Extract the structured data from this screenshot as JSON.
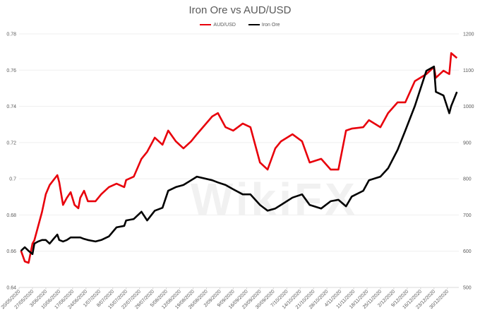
{
  "chart_data": {
    "type": "line",
    "title": "Iron Ore vs AUD/USD",
    "xlabel": "",
    "ylabel_left": "",
    "ylabel_right": "",
    "x_unit": "days since 20/05/2020",
    "xlim": [
      0,
      230
    ],
    "ylim_left": [
      0.64,
      0.78
    ],
    "ylim_right": [
      500,
      1200
    ],
    "yticks_left": [
      "0.64",
      "0.66",
      "0.68",
      "0.7",
      "0.72",
      "0.74",
      "0.76",
      "0.78"
    ],
    "yticks_right": [
      "500",
      "600",
      "700",
      "800",
      "900",
      "1000",
      "1100",
      "1200"
    ],
    "xtick_labels": [
      "20/05/2020",
      "27/05/2020",
      "3/06/2020",
      "10/06/2020",
      "17/06/2020",
      "24/06/2020",
      "1/07/2020",
      "8/07/2020",
      "15/07/2020",
      "22/07/2020",
      "29/07/2020",
      "5/08/2020",
      "12/08/2020",
      "19/08/2020",
      "26/08/2020",
      "2/09/2020",
      "9/09/2020",
      "16/09/2020",
      "23/09/2020",
      "30/09/2020",
      "7/10/2020",
      "14/10/2020",
      "21/10/2020",
      "28/10/2020",
      "4/11/2020",
      "11/11/2020",
      "18/11/2020",
      "25/11/2020",
      "2/12/2020",
      "9/12/2020",
      "16/12/2020",
      "23/12/2020",
      "30/12/2020"
    ],
    "grid": true,
    "legend_position": "top-center",
    "series": [
      {
        "name": "AUD/USD",
        "axis": "left",
        "color": "#e8000b",
        "x": [
          1,
          3,
          5,
          7,
          8,
          10,
          12,
          14,
          16,
          18,
          20,
          21,
          23,
          25,
          27,
          29,
          31,
          32,
          34,
          36,
          40,
          43,
          47,
          51,
          55,
          56,
          60,
          64,
          67,
          71,
          75,
          78,
          82,
          86,
          90,
          93,
          101,
          104,
          108,
          112,
          117,
          121,
          126,
          130,
          134,
          137,
          143,
          148,
          152,
          158,
          163,
          167,
          171,
          174,
          180,
          183,
          189,
          193,
          198,
          202,
          207,
          213,
          217,
          218,
          222,
          225,
          226,
          229
        ],
        "y": [
          0.6603,
          0.6544,
          0.6536,
          0.6642,
          0.6661,
          0.6739,
          0.6817,
          0.6915,
          0.6965,
          0.6993,
          0.702,
          0.6981,
          0.6856,
          0.6895,
          0.6926,
          0.6856,
          0.6837,
          0.6895,
          0.6934,
          0.6876,
          0.6876,
          0.6915,
          0.6954,
          0.6973,
          0.6954,
          0.6993,
          0.7012,
          0.711,
          0.7149,
          0.7227,
          0.7188,
          0.7266,
          0.7207,
          0.7168,
          0.7207,
          0.7246,
          0.7344,
          0.7363,
          0.7285,
          0.7266,
          0.7305,
          0.7285,
          0.709,
          0.7051,
          0.7168,
          0.7207,
          0.7246,
          0.7207,
          0.709,
          0.711,
          0.7051,
          0.7051,
          0.7266,
          0.7277,
          0.7285,
          0.7324,
          0.7285,
          0.7363,
          0.7422,
          0.7422,
          0.7539,
          0.7578,
          0.7617,
          0.7558,
          0.7597,
          0.7578,
          0.7694,
          0.7667
        ]
      },
      {
        "name": "Iron Ore",
        "axis": "right",
        "color": "#000000",
        "x": [
          1,
          3,
          5,
          7,
          8,
          10,
          12,
          14,
          16,
          18,
          20,
          21,
          23,
          25,
          27,
          29,
          31,
          32,
          34,
          36,
          40,
          43,
          47,
          51,
          55,
          56,
          60,
          64,
          67,
          71,
          75,
          78,
          82,
          86,
          90,
          93,
          101,
          104,
          108,
          112,
          117,
          121,
          126,
          130,
          134,
          137,
          143,
          148,
          152,
          158,
          163,
          167,
          171,
          174,
          180,
          183,
          189,
          193,
          198,
          202,
          207,
          213,
          217,
          218,
          222,
          225,
          226,
          229
        ],
        "y": [
          601,
          611,
          601,
          592,
          621,
          627,
          631,
          631,
          621,
          634,
          646,
          631,
          627,
          631,
          638,
          638,
          638,
          638,
          634,
          631,
          627,
          631,
          641,
          666,
          670,
          685,
          689,
          709,
          685,
          712,
          720,
          767,
          777,
          783,
          796,
          806,
          796,
          790,
          783,
          771,
          757,
          757,
          728,
          712,
          718,
          728,
          748,
          757,
          728,
          718,
          738,
          742,
          724,
          751,
          767,
          796,
          806,
          829,
          880,
          933,
          1001,
          1098,
          1110,
          1040,
          1030,
          981,
          1001,
          1040
        ]
      }
    ],
    "watermark": "WikiFX"
  }
}
